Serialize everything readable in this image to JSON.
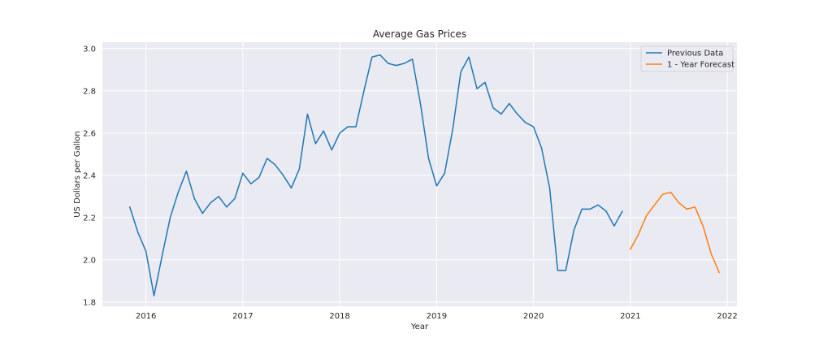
{
  "chart_data": {
    "type": "line",
    "title": "Average Gas Prices",
    "xlabel": "Year",
    "ylabel": "US Dollars per Gallon",
    "xlim": [
      2015.55,
      2022.1
    ],
    "ylim": [
      1.78,
      3.03
    ],
    "x_ticks": [
      2016,
      2017,
      2018,
      2019,
      2020,
      2021,
      2022
    ],
    "x_tick_labels": [
      "2016",
      "2017",
      "2018",
      "2019",
      "2020",
      "2021",
      "2022"
    ],
    "y_ticks": [
      1.8,
      2.0,
      2.2,
      2.4,
      2.6,
      2.8,
      3.0
    ],
    "y_tick_labels": [
      "1.8",
      "2.0",
      "2.2",
      "2.4",
      "2.6",
      "2.8",
      "3.0"
    ],
    "grid": true,
    "legend_position": "top-right",
    "background": "#eaeaf2",
    "series": [
      {
        "name": "Previous Data",
        "color": "#1f77b4",
        "x": [
          2015.833,
          2015.917,
          2016.0,
          2016.083,
          2016.167,
          2016.25,
          2016.333,
          2016.417,
          2016.5,
          2016.583,
          2016.667,
          2016.75,
          2016.833,
          2016.917,
          2017.0,
          2017.083,
          2017.167,
          2017.25,
          2017.333,
          2017.417,
          2017.5,
          2017.583,
          2017.667,
          2017.75,
          2017.833,
          2017.917,
          2018.0,
          2018.083,
          2018.167,
          2018.25,
          2018.333,
          2018.417,
          2018.5,
          2018.583,
          2018.667,
          2018.75,
          2018.833,
          2018.917,
          2019.0,
          2019.083,
          2019.167,
          2019.25,
          2019.333,
          2019.417,
          2019.5,
          2019.583,
          2019.667,
          2019.75,
          2019.833,
          2019.917,
          2020.0,
          2020.083,
          2020.167,
          2020.25,
          2020.333,
          2020.417,
          2020.5,
          2020.583,
          2020.667,
          2020.75,
          2020.833,
          2020.917
        ],
        "y": [
          2.25,
          2.13,
          2.04,
          1.83,
          2.02,
          2.2,
          2.32,
          2.42,
          2.29,
          2.22,
          2.27,
          2.3,
          2.25,
          2.29,
          2.41,
          2.36,
          2.39,
          2.48,
          2.45,
          2.4,
          2.34,
          2.43,
          2.69,
          2.55,
          2.61,
          2.52,
          2.6,
          2.63,
          2.63,
          2.8,
          2.96,
          2.97,
          2.93,
          2.92,
          2.93,
          2.95,
          2.74,
          2.48,
          2.35,
          2.41,
          2.62,
          2.89,
          2.96,
          2.81,
          2.84,
          2.72,
          2.69,
          2.74,
          2.69,
          2.65,
          2.63,
          2.53,
          2.34,
          1.95,
          1.95,
          2.14,
          2.24,
          2.24,
          2.26,
          2.23,
          2.16,
          2.23
        ]
      },
      {
        "name": "1 - Year Forecast",
        "color": "#ff7f0e",
        "x": [
          2021.0,
          2021.083,
          2021.167,
          2021.25,
          2021.333,
          2021.417,
          2021.5,
          2021.583,
          2021.667,
          2021.75,
          2021.833,
          2021.917
        ],
        "y": [
          2.05,
          2.12,
          2.21,
          2.26,
          2.31,
          2.32,
          2.27,
          2.24,
          2.25,
          2.16,
          2.03,
          1.94
        ]
      }
    ]
  }
}
